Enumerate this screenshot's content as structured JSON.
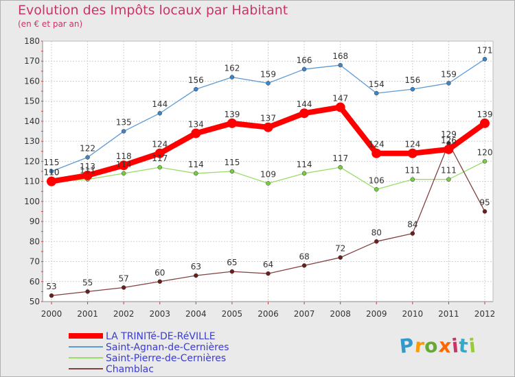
{
  "header": {
    "title": "Evolution des Impôts locaux par Habitant",
    "subtitle": "(en € et par an)"
  },
  "logo": {
    "letters": [
      "P",
      "r",
      "o",
      "x",
      "i",
      "t",
      "i"
    ],
    "colors": [
      "#3399cc",
      "#ff9900",
      "#66aa33",
      "#ff6600",
      "#cc3366",
      "#33aacc",
      "#99cc33"
    ]
  },
  "chart_data": {
    "type": "line",
    "title": "Evolution des Impôts locaux par Habitant",
    "ylabel": "(en € et par an)",
    "xlabel": "",
    "x": [
      "2000",
      "2001",
      "2002",
      "2003",
      "2004",
      "2005",
      "2006",
      "2007",
      "2008",
      "2009",
      "2010",
      "2011",
      "2012"
    ],
    "ylim": [
      50,
      180
    ],
    "yticks": [
      "50",
      "60",
      "70",
      "80",
      "90",
      "100",
      "110",
      "120",
      "130",
      "140",
      "150",
      "160",
      "170",
      "180"
    ],
    "grid": true,
    "legend_position": "bottom-left",
    "series": [
      {
        "name": "Saint-Agnan-de-Cernières",
        "color": "#5b9bd5",
        "marker": "#3d85c6",
        "thick": false,
        "values": [
          115,
          122,
          135,
          144,
          156,
          162,
          159,
          166,
          168,
          154,
          156,
          159,
          171
        ]
      },
      {
        "name": "Saint-Pierre-de-Cernières",
        "color": "#99dd66",
        "marker": "#77cc44",
        "thick": false,
        "values": [
          110,
          111,
          114,
          117,
          114,
          115,
          109,
          114,
          117,
          106,
          111,
          111,
          120
        ]
      },
      {
        "name": "Chamblac",
        "color": "#804040",
        "marker": "#6b1f1f",
        "thick": false,
        "values": [
          53,
          55,
          57,
          60,
          63,
          65,
          64,
          68,
          72,
          80,
          84,
          129,
          95
        ]
      },
      {
        "name": "LA TRINITé-DE-RéVILLE",
        "color": "#ff0000",
        "marker": "#ff0000",
        "thick": true,
        "values": [
          110,
          113,
          118,
          124,
          134,
          139,
          137,
          144,
          147,
          124,
          124,
          126,
          139
        ]
      }
    ],
    "legend_order": [
      3,
      0,
      1,
      2
    ]
  }
}
